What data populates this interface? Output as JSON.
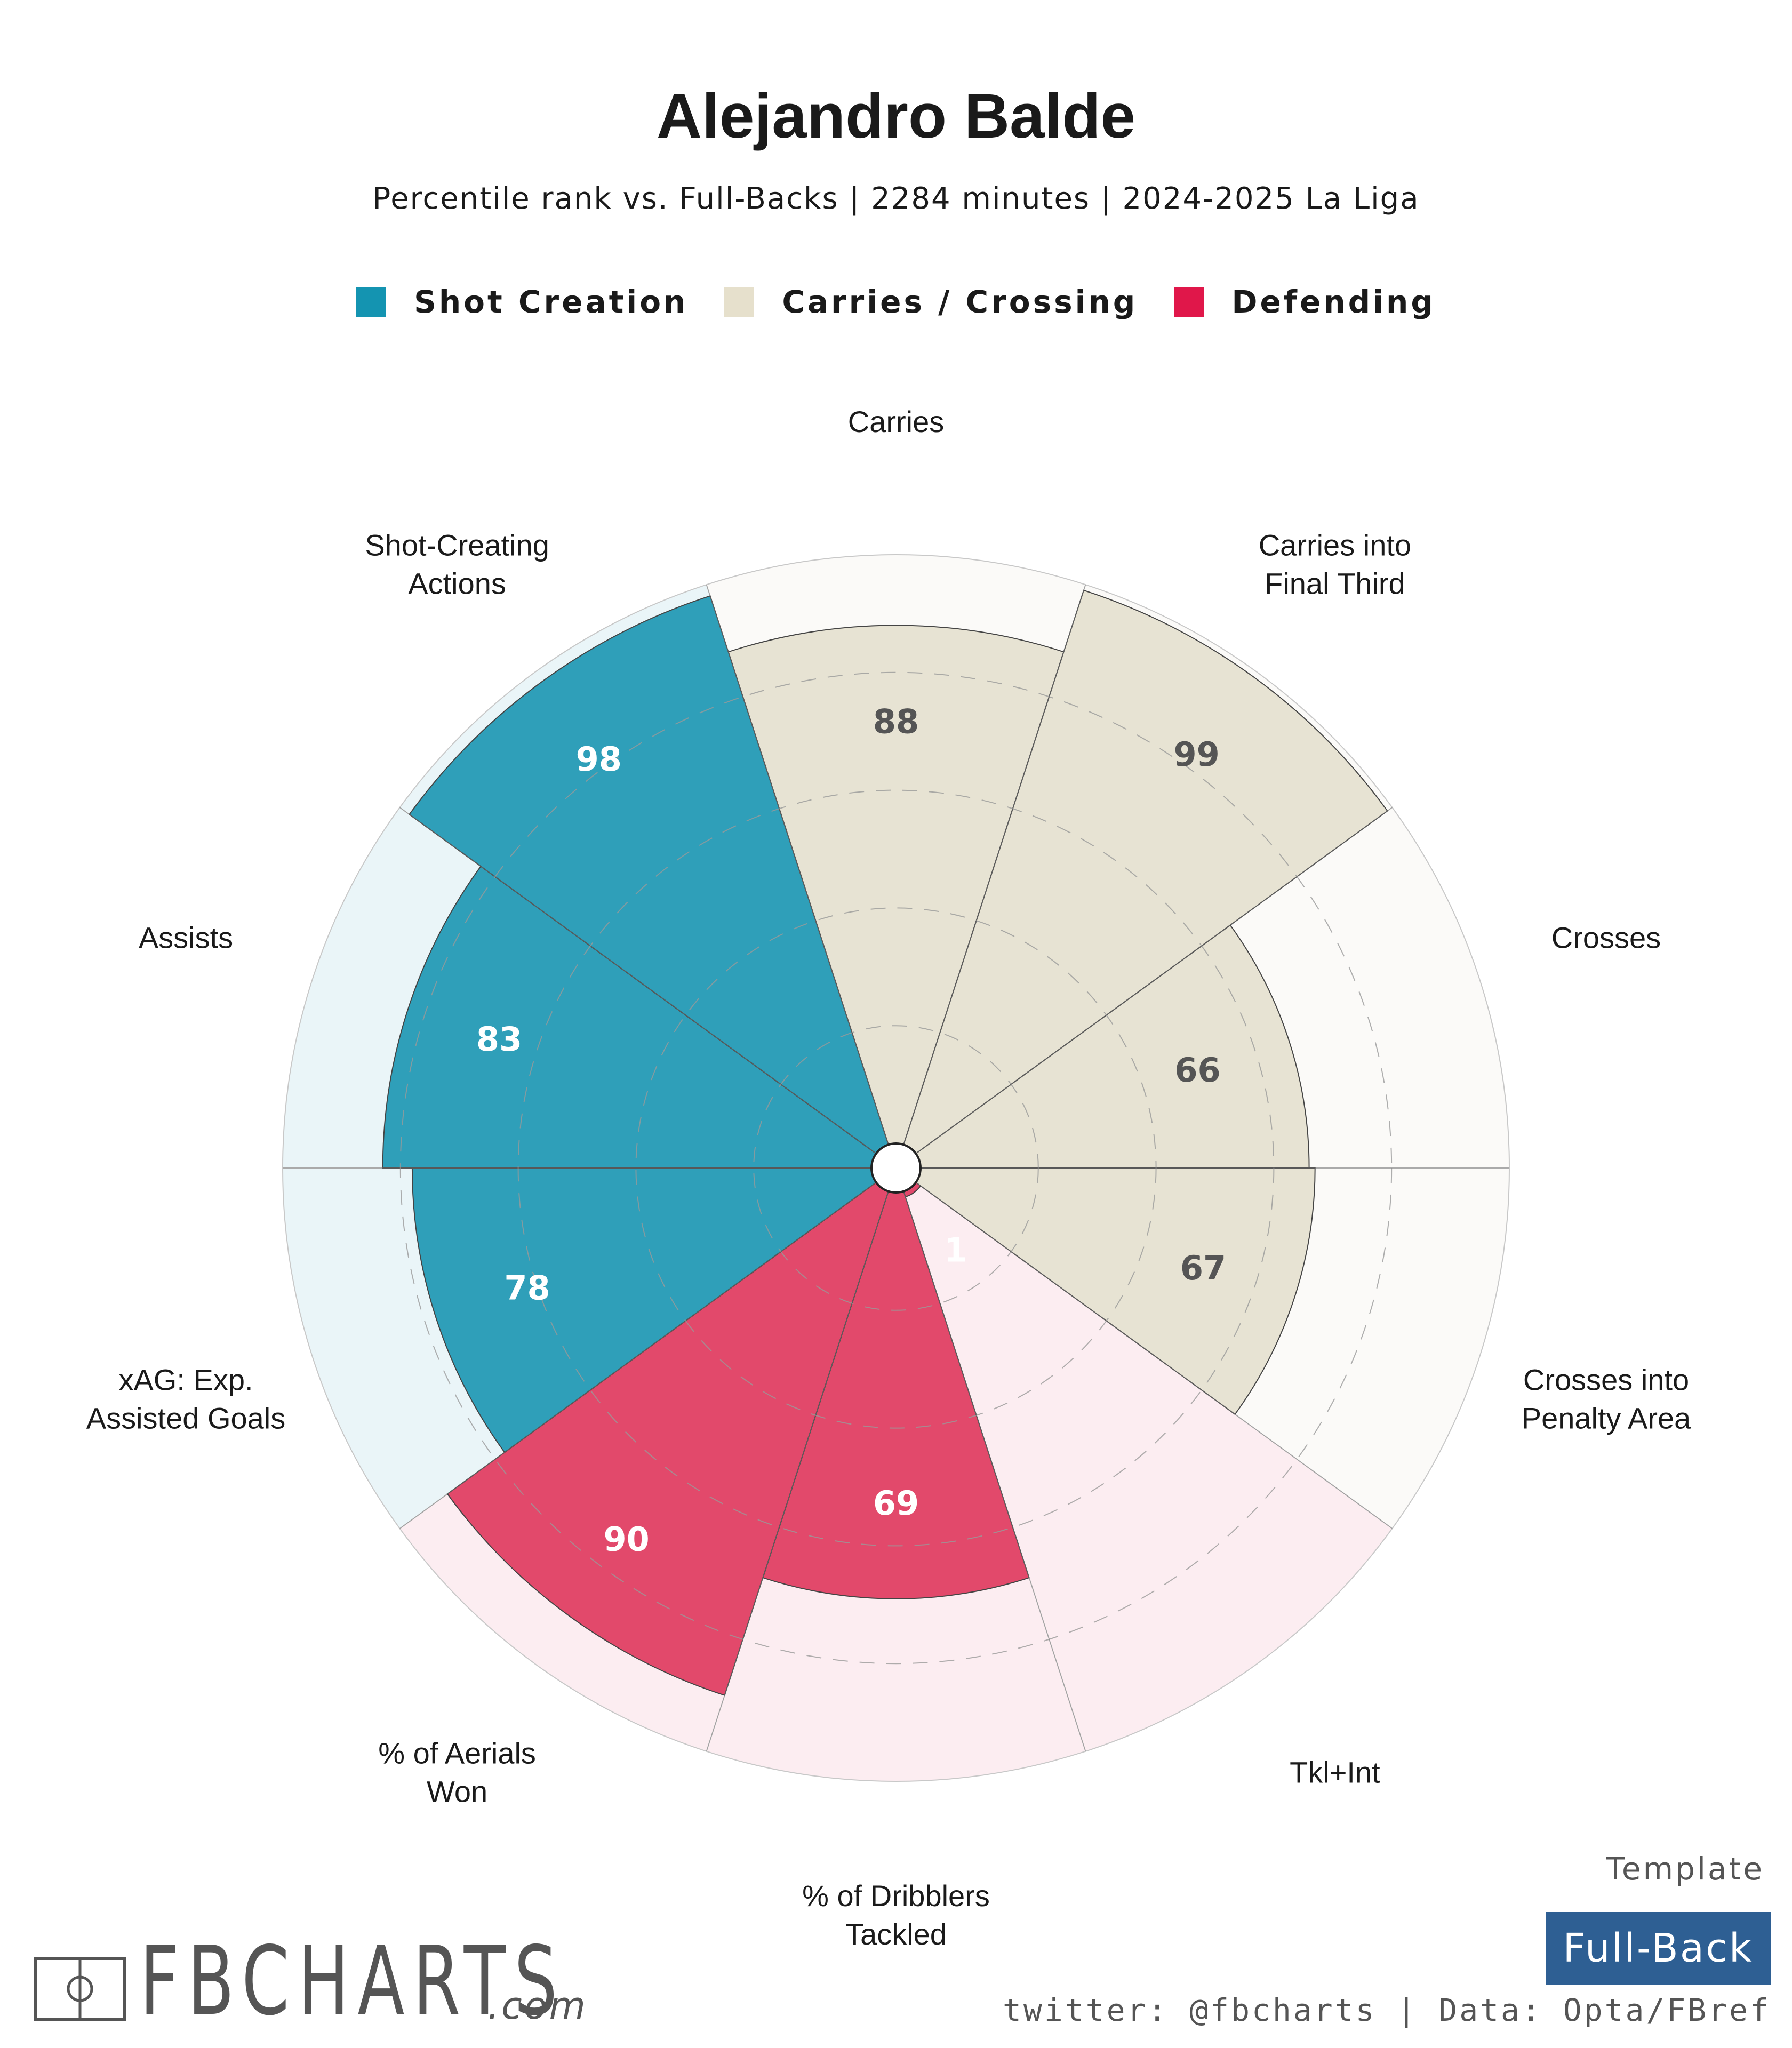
{
  "title": "Alejandro Balde",
  "subtitle": "Percentile rank vs. Full-Backs | 2284 minutes | 2024-2025 La Liga",
  "legend": [
    {
      "label": "Shot Creation",
      "color": "#1494b1"
    },
    {
      "label": "Carries / Crossing",
      "color": "#e6e0cc"
    },
    {
      "label": "Defending",
      "color": "#e0174a"
    }
  ],
  "chart_data": {
    "type": "polar-bar",
    "title": "Alejandro Balde",
    "rlim": [
      0,
      100
    ],
    "grid": true,
    "categories": [
      {
        "label": "Carries",
        "value": 88,
        "group": "Carries / Crossing"
      },
      {
        "label": "Carries into\nFinal Third",
        "value": 99,
        "group": "Carries / Crossing"
      },
      {
        "label": "Crosses",
        "value": 66,
        "group": "Carries / Crossing"
      },
      {
        "label": "Crosses into\nPenalty Area",
        "value": 67,
        "group": "Carries / Crossing"
      },
      {
        "label": "Tkl+Int",
        "value": 1,
        "group": "Defending"
      },
      {
        "label": "% of Dribblers\nTackled",
        "value": 69,
        "group": "Defending"
      },
      {
        "label": "% of Aerials\nWon",
        "value": 90,
        "group": "Defending"
      },
      {
        "label": "xAG: Exp.\nAssisted Goals",
        "value": 78,
        "group": "Shot Creation"
      },
      {
        "label": "Assists",
        "value": 83,
        "group": "Shot Creation"
      },
      {
        "label": "Shot-Creating\nActions",
        "value": 98,
        "group": "Shot Creation"
      }
    ],
    "group_colors": {
      "Shot Creation": {
        "bar": "#2f9fb9",
        "bg": "#eaf5f8",
        "text": "#ffffff"
      },
      "Carries / Crossing": {
        "bar": "#e7e3d3",
        "bg": "#fbfaf8",
        "text": "#555555"
      },
      "Defending": {
        "bar": "#e2496b",
        "bg": "#fcedf1",
        "text": "#ffffff"
      }
    }
  },
  "template": {
    "label": "Template",
    "value": "Full-Back"
  },
  "credit": "twitter: @fbcharts | Data: Opta/FBref",
  "logo": {
    "name": "FBCHARTS",
    "domain": ".com"
  }
}
